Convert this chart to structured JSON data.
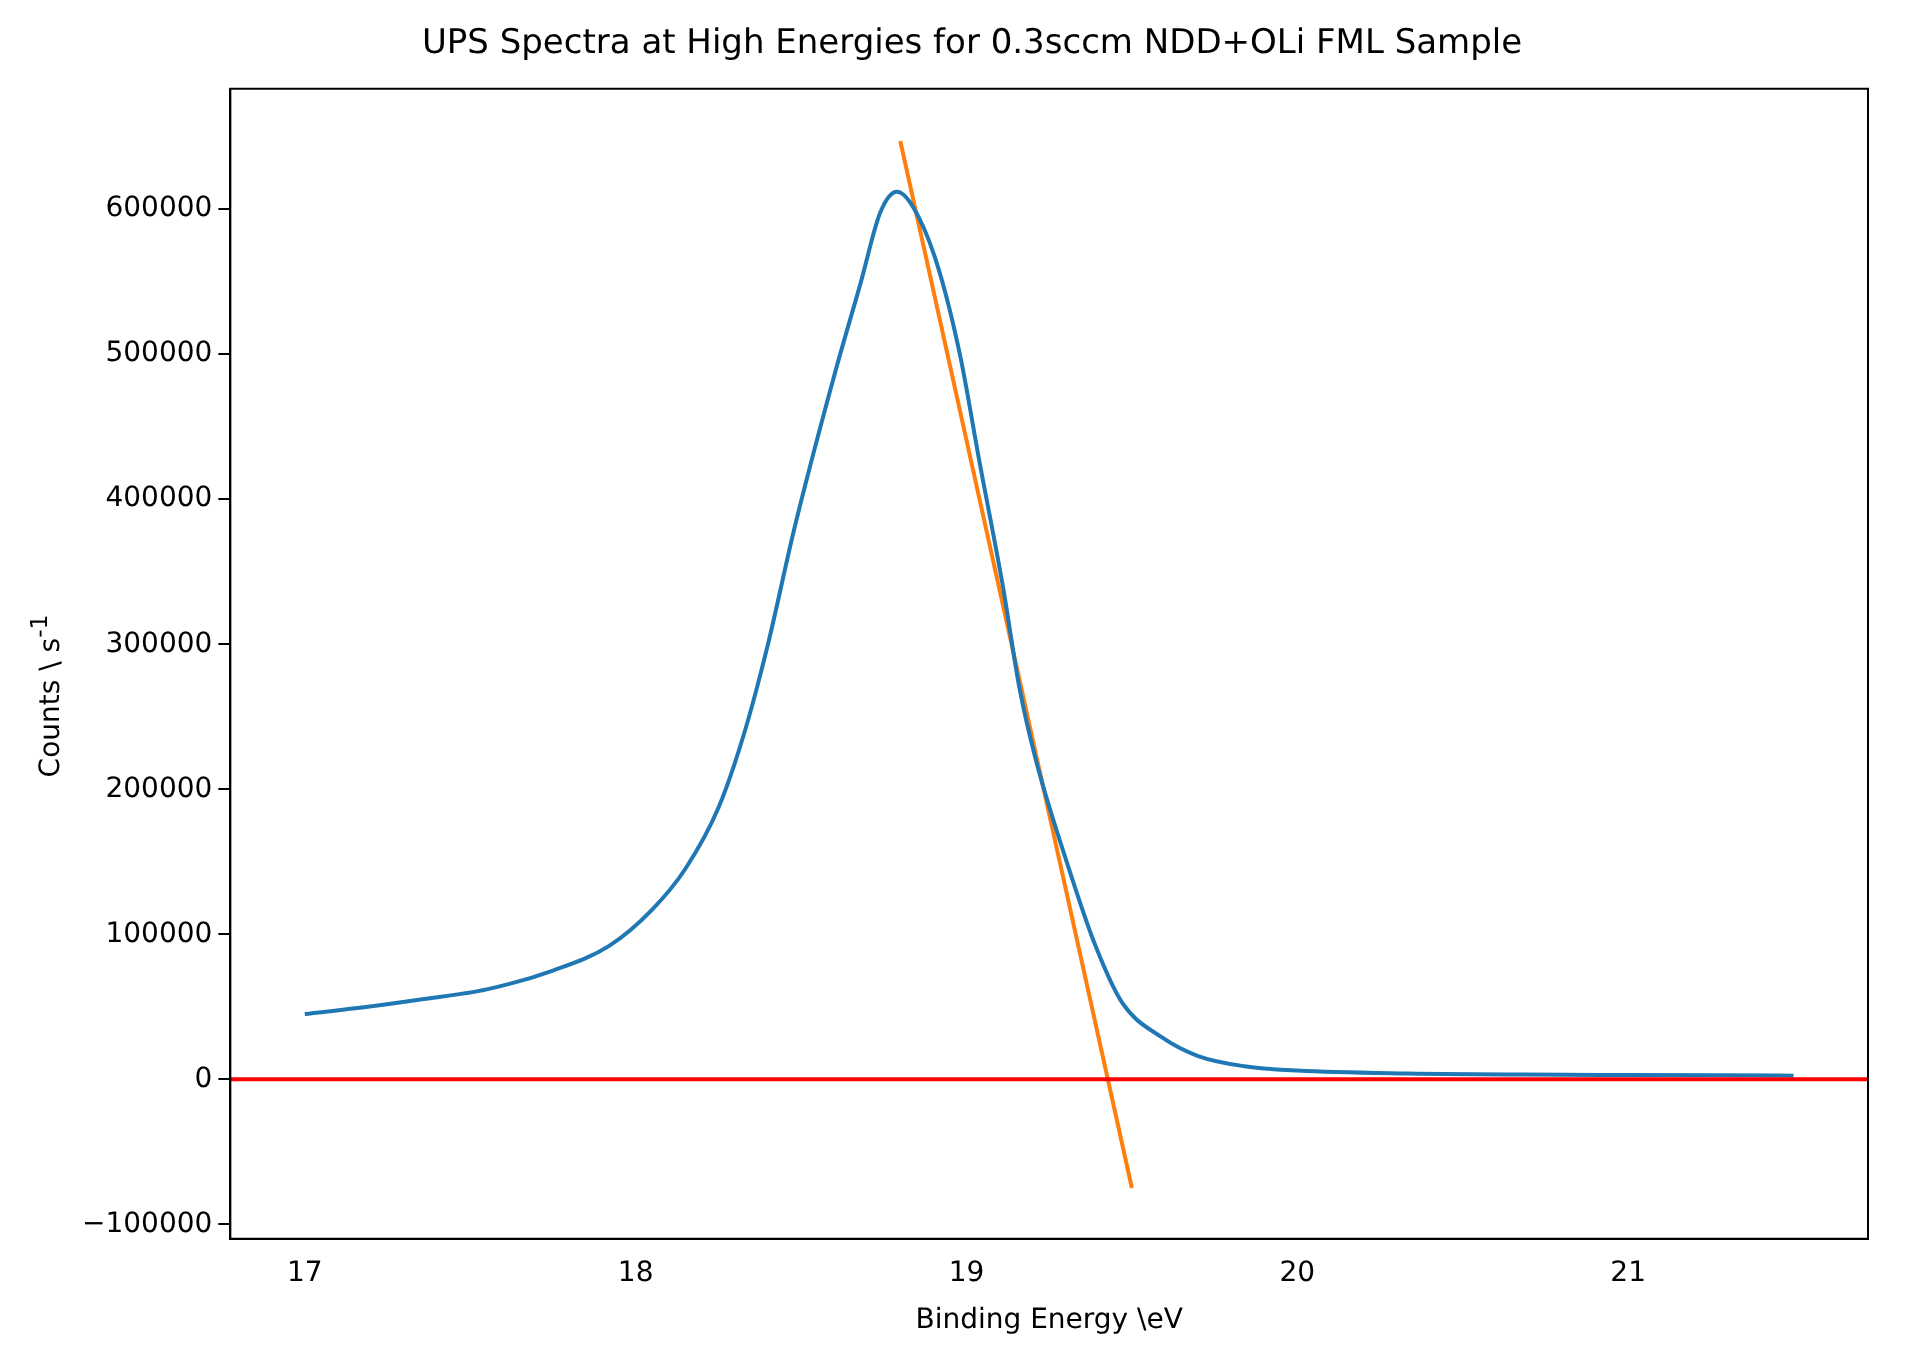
{
  "chart_data": {
    "type": "line",
    "title": "UPS Spectra at High Energies for 0.3sccm NDD+OLi FML Sample",
    "xlabel": "Binding Energy \\eV",
    "ylabel": "Counts \\ s$^{-1}$",
    "series": [
      {
        "color": "#1f77b4",
        "x": [
          17.0,
          17.19,
          17.35,
          17.55,
          17.75,
          17.92,
          18.05,
          18.15,
          18.25,
          18.33,
          18.4,
          18.48,
          18.6,
          18.68,
          18.74,
          18.79,
          18.84,
          18.91,
          18.98,
          19.04,
          19.11,
          19.16,
          19.21,
          19.31,
          19.39,
          19.47,
          19.59,
          19.7,
          19.84,
          20.0,
          20.33,
          21.0,
          21.5
        ],
        "values": [
          45000,
          50000,
          55000,
          62000,
          75000,
          92000,
          117000,
          145000,
          187000,
          240000,
          300000,
          380000,
          485000,
          549000,
          598000,
          612000,
          601000,
          563000,
          500000,
          425000,
          340000,
          270000,
          220000,
          145000,
          92000,
          53000,
          29000,
          16000,
          9000,
          6000,
          4000,
          3000,
          2500
        ]
      },
      {
        "type": "line",
        "color": "#ff7f0e",
        "x": [
          18.8,
          19.5
        ],
        "values": [
          647000,
          -75000
        ]
      }
    ],
    "xlim": [
      16.775,
      21.725
    ],
    "ylim": [
      -110000,
      683000
    ],
    "xticks": [
      17,
      18,
      19,
      20,
      21
    ],
    "yticks": [
      {
        "value": -100000,
        "label": "−100000"
      },
      0,
      100000,
      200000,
      300000,
      400000,
      500000,
      600000
    ],
    "ref_lines": [
      {
        "axis": "y",
        "value": 0,
        "color": "#ff0000"
      }
    ],
    "grid": false,
    "legend": false,
    "marker": "none",
    "line_style": "solid"
  }
}
